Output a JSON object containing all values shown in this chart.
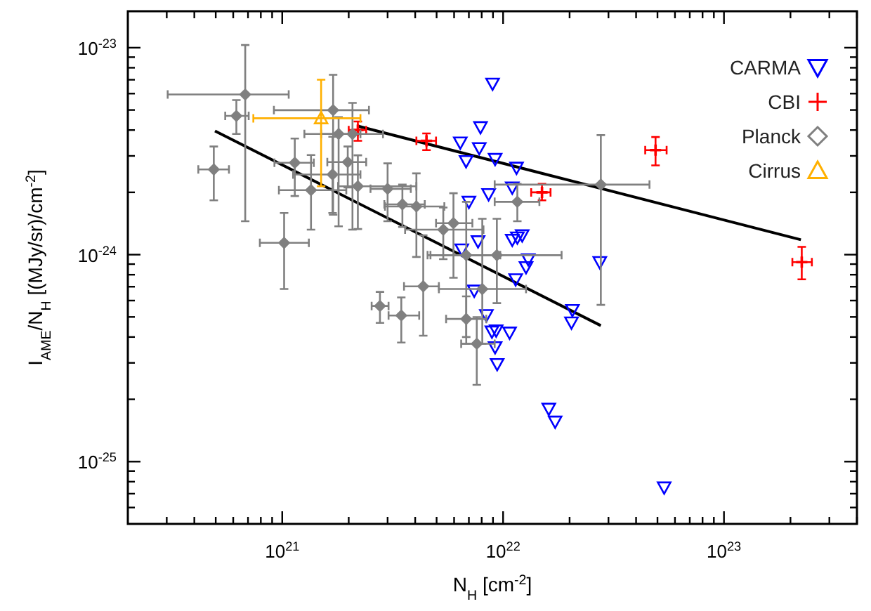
{
  "chart_data": {
    "type": "scatter",
    "xlabel": "N$_{H}$ [cm$^{-2}$]",
    "ylabel": "I$_{AME}$/N$_{H}$ [(MJy/sr)/cm$^{-2}$]",
    "log": "xy",
    "xlim": [
      2e+20,
      4e+23
    ],
    "ylim": [
      5e-26,
      1.5e-23
    ],
    "xticks": [
      {
        "value": 3e+20,
        "label": null
      },
      {
        "value": 4e+20,
        "label": null
      },
      {
        "value": 5e+20,
        "label": null
      },
      {
        "value": 6e+20,
        "label": null
      },
      {
        "value": 7e+20,
        "label": null
      },
      {
        "value": 8e+20,
        "label": null
      },
      {
        "value": 9e+20,
        "label": null
      },
      {
        "value": 1e+21,
        "label": "10$^{21}$"
      },
      {
        "value": 2e+21,
        "label": null
      },
      {
        "value": 3e+21,
        "label": null
      },
      {
        "value": 4e+21,
        "label": null
      },
      {
        "value": 5e+21,
        "label": null
      },
      {
        "value": 6e+21,
        "label": null
      },
      {
        "value": 7e+21,
        "label": null
      },
      {
        "value": 8e+21,
        "label": null
      },
      {
        "value": 9e+21,
        "label": null
      },
      {
        "value": 1e+22,
        "label": "10$^{22}$"
      },
      {
        "value": 2e+22,
        "label": null
      },
      {
        "value": 3e+22,
        "label": null
      },
      {
        "value": 4e+22,
        "label": null
      },
      {
        "value": 5e+22,
        "label": null
      },
      {
        "value": 6e+22,
        "label": null
      },
      {
        "value": 7e+22,
        "label": null
      },
      {
        "value": 8e+22,
        "label": null
      },
      {
        "value": 9e+22,
        "label": null
      },
      {
        "value": 1e+23,
        "label": "10$^{23}$"
      },
      {
        "value": 2e+23,
        "label": null
      },
      {
        "value": 3e+23,
        "label": null
      },
      {
        "value": 4e+23,
        "label": null
      }
    ],
    "yticks": [
      {
        "value": 6e-26,
        "label": null
      },
      {
        "value": 7e-26,
        "label": null
      },
      {
        "value": 8e-26,
        "label": null
      },
      {
        "value": 9e-26,
        "label": null
      },
      {
        "value": 1e-25,
        "label": "10$^{-25}$"
      },
      {
        "value": 2e-25,
        "label": null
      },
      {
        "value": 3e-25,
        "label": null
      },
      {
        "value": 4e-25,
        "label": null
      },
      {
        "value": 5e-25,
        "label": null
      },
      {
        "value": 6e-25,
        "label": null
      },
      {
        "value": 7e-25,
        "label": null
      },
      {
        "value": 8e-25,
        "label": null
      },
      {
        "value": 9e-25,
        "label": null
      },
      {
        "value": 1e-24,
        "label": "10$^{-24}$"
      },
      {
        "value": 2e-24,
        "label": null
      },
      {
        "value": 3e-24,
        "label": null
      },
      {
        "value": 4e-24,
        "label": null
      },
      {
        "value": 5e-24,
        "label": null
      },
      {
        "value": 6e-24,
        "label": null
      },
      {
        "value": 7e-24,
        "label": null
      },
      {
        "value": 8e-24,
        "label": null
      },
      {
        "value": 9e-24,
        "label": null
      },
      {
        "value": 1e-23,
        "label": "10$^{-23}$"
      }
    ],
    "grid": false,
    "legend": "top right",
    "series": [
      {
        "name": "CARMA",
        "color": "#0000ff",
        "marker": "triangle-down",
        "x": [
          8.96e+21,
          7.9e+21,
          6.4e+21,
          7.8e+21,
          6.8e+21,
          9.2e+21,
          1.15e+22,
          1.1e+22,
          8.6e+21,
          7e+21,
          7.7e+21,
          6.5e+21,
          1.1e+22,
          1.16e+22,
          1.22e+22,
          1.3e+22,
          1.27e+22,
          1.14e+22,
          2.74e+22,
          7.4e+21,
          8.4e+21,
          2.06e+22,
          2.04e+22,
          8.9e+21,
          9.3e+21,
          1.07e+22,
          9.2e+21,
          9.4e+21,
          1.61e+22,
          1.72e+22,
          5.36e+22
        ],
        "values": [
          6.7e-24,
          4.13e-24,
          3.48e-24,
          3.27e-24,
          2.83e-24,
          2.9e-24,
          2.63e-24,
          2.11e-24,
          1.96e-24,
          1.8e-24,
          1.16e-24,
          1.06e-24,
          1.18e-24,
          1.21e-24,
          1.24e-24,
          9.5e-25,
          8.7e-25,
          7.6e-25,
          9.2e-25,
          6.7e-25,
          5.1e-25,
          5.4e-25,
          4.7e-25,
          4.25e-25,
          4.3e-25,
          4.2e-25,
          3.57e-25,
          2.96e-25,
          1.8e-25,
          1.56e-25,
          7.5e-26
        ]
      },
      {
        "name": "CBI",
        "color": "#ff0000",
        "marker": "cross",
        "x": [
          2.2e+21,
          4.5e+21,
          1.5e+22,
          4.9e+22,
          2.25e+23
        ],
        "values": [
          4e-24,
          3.55e-24,
          2e-24,
          3.2e-24,
          9.2e-25
        ],
        "errors": [
          [
            3.55e-24,
            4.4e-24
          ],
          [
            3.2e-24,
            3.85e-24
          ],
          [
            1.83e-24,
            2.2e-24
          ],
          [
            2.7e-24,
            3.7e-24
          ],
          [
            7.6e-25,
            1.09e-24
          ]
        ],
        "xerrors": [
          [
            2e+21,
            2.4e+21
          ],
          [
            4.05e+21,
            4.97e+21
          ],
          [
            1.34e+22,
            1.64e+22
          ],
          [
            4.4e+22,
            5.5e+22
          ],
          [
            2.04e+23,
            2.5e+23
          ]
        ]
      },
      {
        "name": "Planck",
        "color": "#808080",
        "marker": "diamond",
        "x": [
          4.9e+20,
          6.2e+20,
          6.8e+20,
          1.02e+21,
          1.14e+21,
          1.35e+21,
          1.7e+21,
          1.8e+21,
          1.69e+21,
          1.98e+21,
          2.08e+21,
          2.2e+21,
          3e+21,
          2.77e+21,
          3.46e+21,
          3.5e+21,
          4.05e+21,
          4.35e+21,
          5.36e+21,
          5.96e+21,
          6.81e+21,
          6.81e+21,
          8.05e+21,
          7.6e+21,
          9.37e+21,
          1.16e+22,
          2.77e+22
        ],
        "values": [
          2.58e-24,
          4.68e-24,
          5.94e-24,
          1.14e-24,
          2.78e-24,
          2.05e-24,
          4.99e-24,
          3.83e-24,
          2.44e-24,
          2.8e-24,
          3.83e-24,
          2.14e-24,
          2.08e-24,
          5.65e-25,
          5.08e-25,
          1.75e-24,
          1.71e-24,
          7.03e-25,
          1.32e-24,
          1.42e-24,
          4.89e-25,
          9.94e-25,
          6.82e-25,
          3.71e-25,
          9.94e-25,
          1.8e-24,
          2.18e-24
        ],
        "errors": [
          [
            1.83e-24,
            3.33e-24
          ],
          [
            3.83e-24,
            5.58e-24
          ],
          [
            1.45e-24,
            1.03e-23
          ],
          [
            6.82e-25,
            1.59e-24
          ],
          [
            1.92e-24,
            3.64e-24
          ],
          [
            1.32e-24,
            3.03e-24
          ],
          [
            1.56e-24,
            7.4e-24
          ],
          [
            1.37e-24,
            4.62e-24
          ],
          [
            1.59e-24,
            3.71e-24
          ],
          [
            2.11e-24,
            3.33e-24
          ],
          [
            1.32e-24,
            5.41e-24
          ],
          [
            1.33e-24,
            3.02e-24
          ],
          [
            1.45e-24,
            2.76e-24
          ],
          [
            4.68e-25,
            6.61e-25
          ],
          [
            3.76e-25,
            6.21e-25
          ],
          [
            1.36e-24,
            2.18e-24
          ],
          [
            9.75e-25,
            2.47e-24
          ],
          [
            4.06e-25,
            1.24e-24
          ],
          [
            9.51e-25,
            1.69e-24
          ],
          [
            7.73e-25,
            1.98e-24
          ],
          [
            3.71e-25,
            6.29e-25
          ],
          [
            4e-25,
            1.8e-24
          ],
          [
            3.71e-25,
            1.49e-24
          ],
          [
            2.35e-25,
            4.99e-25
          ],
          [
            5.83e-25,
            1.49e-24
          ],
          [
            1.45e-24,
            2.2e-24
          ],
          [
            5.72e-25,
            3.78e-24
          ]
        ],
        "xerrors": [
          [
            4.17e+20,
            5.74e+20
          ],
          [
            5.52e+20,
            7.05e+20
          ],
          [
            3.03e+20,
            1.07e+21
          ],
          [
            7.92e+20,
            1.32e+21
          ],
          [
            9.22e+20,
            1.39e+21
          ],
          [
            9.66e+20,
            1.95e+21
          ],
          [
            9.17e+20,
            2.47e+21
          ],
          [
            1.26e+21,
            2.26e+21
          ],
          [
            1.12e+21,
            2.26e+21
          ],
          [
            1.6e+21,
            2.4e+21
          ],
          [
            1.5e+21,
            2.86e+21
          ],
          [
            1.79e+21,
            4.05e+21
          ],
          [
            2.51e+21,
            3.82e+21
          ],
          [
            2.54e+21,
            3.03e+21
          ],
          [
            3.03e+21,
            4.17e+21
          ],
          [
            2.9e+21,
            4.42e+21
          ],
          [
            2.92e+21,
            5.42e+21
          ],
          [
            3.56e+21,
            5.12e+21
          ],
          [
            3.6e+21,
            8.15e+21
          ],
          [
            4.97e+21,
            7.26e+21
          ],
          [
            5.52e+21,
            8.39e+21
          ],
          [
            4.55e+21,
            9.71e+21
          ],
          [
            5.12e+21,
            1.27e+22
          ],
          [
            6.46e+21,
            9.16e+21
          ],
          [
            4.69e+21,
            1.84e+22
          ],
          [
            9.16e+21,
            1.46e+22
          ],
          [
            9.16e+21,
            4.6e+22
          ]
        ]
      },
      {
        "name": "Cirrus",
        "color": "#ffb000",
        "marker": "triangle",
        "x": [
          1.5e+21
        ],
        "values": [
          4.56e-24
        ],
        "errors": [
          [
            2.14e-24,
            7e-24
          ]
        ],
        "xerrors": [
          [
            7.4e+20,
            2.26e+21
          ]
        ]
      },
      {
        "type": "line",
        "color": "#000000",
        "x": [
          4.96e+20,
          2.77e+22
        ],
        "values": [
          3.96e-24,
          4.54e-25
        ]
      },
      {
        "type": "line",
        "color": "#000000",
        "x": [
          2.2e+21,
          2.23e+23
        ],
        "values": [
          4.18e-24,
          1.18e-24
        ]
      }
    ]
  }
}
